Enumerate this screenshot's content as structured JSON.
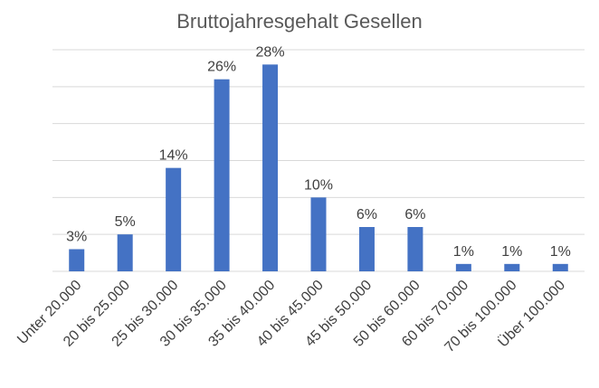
{
  "chart_data": {
    "type": "bar",
    "title": "Bruttojahresgehalt Gesellen",
    "xlabel": "",
    "ylabel": "",
    "categories": [
      "Unter 20.000",
      "20 bis 25.000",
      "25 bis 30.000",
      "30 bis 35.000",
      "35 bis 40.000",
      "40 bis 45.000",
      "45 bis 50.000",
      "50 bis 60.000",
      "60 bis 70.000",
      "70 bis 100.000",
      "Über 100.000"
    ],
    "values": [
      3,
      5,
      14,
      26,
      28,
      10,
      6,
      6,
      1,
      1,
      1
    ],
    "value_labels": [
      "3%",
      "5%",
      "14%",
      "26%",
      "28%",
      "10%",
      "6%",
      "6%",
      "1%",
      "1%",
      "1%"
    ],
    "ylim": [
      0,
      30
    ],
    "grid": true,
    "legend": "none",
    "colors": {
      "bar": "#4472C4",
      "grid": "#D9D9D9",
      "text": "#404040",
      "title": "#595959"
    }
  }
}
